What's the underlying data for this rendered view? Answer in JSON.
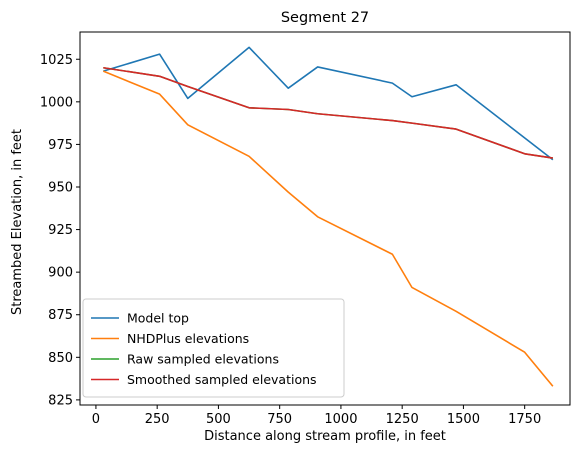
{
  "chart_data": {
    "type": "line",
    "title": "Segment 27",
    "xlabel": "Distance along stream profile, in feet",
    "ylabel": "Streambed Elevation, in feet",
    "xlim": [
      -65,
      1935
    ],
    "ylim": [
      822,
      1041
    ],
    "xticks": [
      0,
      250,
      500,
      750,
      1000,
      1250,
      1500,
      1750
    ],
    "yticks": [
      825,
      850,
      875,
      900,
      925,
      950,
      975,
      1000,
      1025
    ],
    "legend_position": "lower left",
    "grid": false,
    "series": [
      {
        "name": "Model top",
        "color": "#1f77b4",
        "x": [
          30,
          260,
          375,
          625,
          785,
          905,
          1210,
          1290,
          1470,
          1865
        ],
        "y": [
          1018,
          1028,
          1002,
          1032,
          1008,
          1020.5,
          1011,
          1003,
          1010,
          966
        ]
      },
      {
        "name": "NHDPlus elevations",
        "color": "#ff7f0e",
        "x": [
          30,
          260,
          375,
          625,
          785,
          905,
          1210,
          1290,
          1470,
          1750,
          1865
        ],
        "y": [
          1018,
          1004.5,
          986.5,
          968,
          947,
          932.5,
          910.5,
          891,
          877,
          853,
          833
        ]
      },
      {
        "name": "Raw sampled elevations",
        "color": "#2ca02c",
        "x": [
          30,
          260,
          375,
          625,
          785,
          905,
          1210,
          1290,
          1470,
          1750,
          1865
        ],
        "y": [
          1020,
          1015,
          1009,
          996.5,
          995.5,
          993,
          989,
          987.5,
          984,
          969.5,
          967
        ]
      },
      {
        "name": "Smoothed sampled elevations",
        "color": "#d62728",
        "x": [
          30,
          260,
          375,
          625,
          785,
          905,
          1210,
          1290,
          1470,
          1750,
          1865
        ],
        "y": [
          1020,
          1015,
          1009,
          996.5,
          995.5,
          993,
          989,
          987.5,
          984,
          969.5,
          967
        ]
      }
    ]
  }
}
